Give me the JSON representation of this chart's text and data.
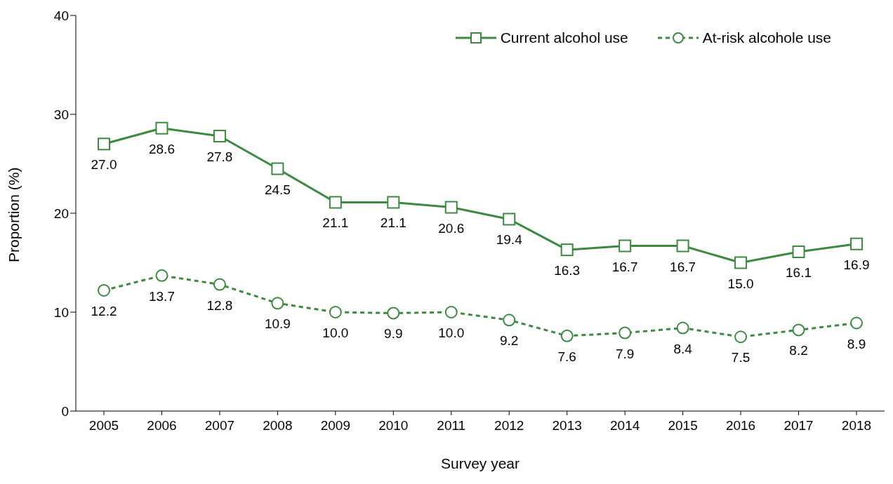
{
  "chart_data": {
    "type": "line",
    "xlabel": "Survey year",
    "ylabel": "Proportion (%)",
    "categories": [
      "2005",
      "2006",
      "2007",
      "2008",
      "2009",
      "2010",
      "2011",
      "2012",
      "2013",
      "2014",
      "2015",
      "2016",
      "2017",
      "2018"
    ],
    "series": [
      {
        "name": "Current alcohol use",
        "color": "#3b8a3f",
        "marker": "square",
        "line_style": "solid",
        "values": [
          27.0,
          28.6,
          27.8,
          24.5,
          21.1,
          21.1,
          20.6,
          19.4,
          16.3,
          16.7,
          16.7,
          15.0,
          16.1,
          16.9
        ],
        "value_labels": [
          "27.0",
          "28.6",
          "27.8",
          "24.5",
          "21.1",
          "21.1",
          "20.6",
          "19.4",
          "16.3",
          "16.7",
          "16.7",
          "15.0",
          "16.1",
          "16.9"
        ]
      },
      {
        "name": "At-risk alcohole use",
        "color": "#3b8a3f",
        "marker": "circle",
        "line_style": "dashed",
        "values": [
          12.2,
          13.7,
          12.8,
          10.9,
          10.0,
          9.9,
          10.0,
          9.2,
          7.6,
          7.9,
          8.4,
          7.5,
          8.2,
          8.9
        ],
        "value_labels": [
          "12.2",
          "13.7",
          "12.8",
          "10.9",
          "10.0",
          "9.9",
          "10.0",
          "9.2",
          "7.6",
          "7.9",
          "8.4",
          "7.5",
          "8.2",
          "8.9"
        ]
      }
    ],
    "ylim": [
      0,
      40
    ],
    "yticks": [
      0,
      10,
      20,
      30,
      40
    ],
    "grid": false,
    "legend": "top right"
  }
}
